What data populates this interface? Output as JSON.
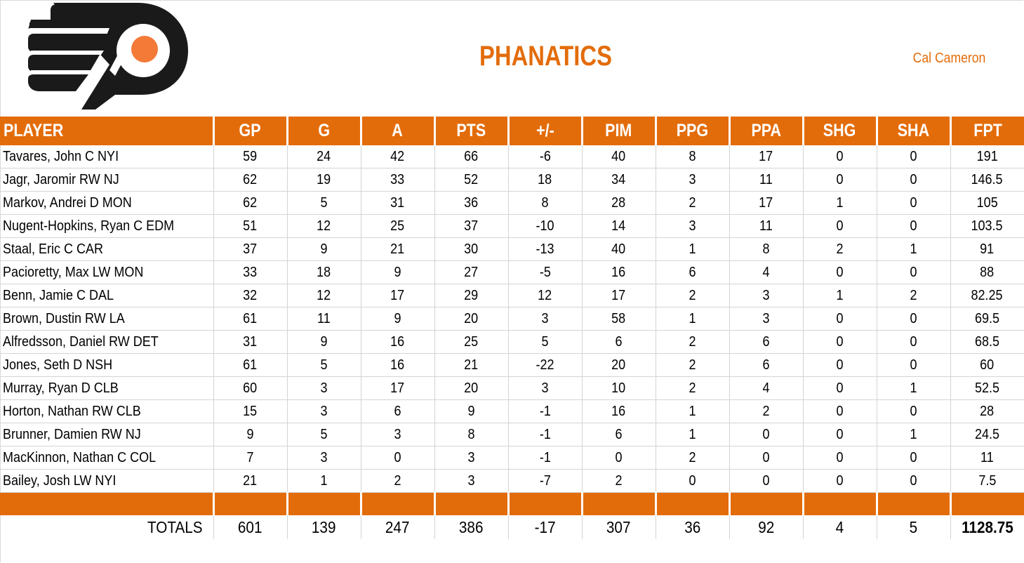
{
  "colors": {
    "accent": "#E36C0A",
    "logo_black": "#1a1a1a",
    "logo_orange": "#F47A38",
    "grid": "#D4D4D4"
  },
  "header": {
    "logo_icon": "flyers-logo",
    "logo_mark": "®",
    "team_name": "PHANATICS",
    "owner_name": "Cal Cameron"
  },
  "table": {
    "columns": [
      "PLAYER",
      "GP",
      "G",
      "A",
      "PTS",
      "+/-",
      "PIM",
      "PPG",
      "PPA",
      "SHG",
      "SHA",
      "FPT"
    ],
    "rows": [
      [
        "Tavares, John C NYI",
        "59",
        "24",
        "42",
        "66",
        "-6",
        "40",
        "8",
        "17",
        "0",
        "0",
        "191"
      ],
      [
        "Jagr, Jaromir RW NJ",
        "62",
        "19",
        "33",
        "52",
        "18",
        "34",
        "3",
        "11",
        "0",
        "0",
        "146.5"
      ],
      [
        "Markov, Andrei D MON",
        "62",
        "5",
        "31",
        "36",
        "8",
        "28",
        "2",
        "17",
        "1",
        "0",
        "105"
      ],
      [
        "Nugent-Hopkins, Ryan C EDM",
        "51",
        "12",
        "25",
        "37",
        "-10",
        "14",
        "3",
        "11",
        "0",
        "0",
        "103.5"
      ],
      [
        "Staal, Eric C CAR",
        "37",
        "9",
        "21",
        "30",
        "-13",
        "40",
        "1",
        "8",
        "2",
        "1",
        "91"
      ],
      [
        "Pacioretty, Max LW MON",
        "33",
        "18",
        "9",
        "27",
        "-5",
        "16",
        "6",
        "4",
        "0",
        "0",
        "88"
      ],
      [
        "Benn, Jamie C DAL",
        "32",
        "12",
        "17",
        "29",
        "12",
        "17",
        "2",
        "3",
        "1",
        "2",
        "82.25"
      ],
      [
        "Brown, Dustin RW LA",
        "61",
        "11",
        "9",
        "20",
        "3",
        "58",
        "1",
        "3",
        "0",
        "0",
        "69.5"
      ],
      [
        "Alfredsson, Daniel RW DET",
        "31",
        "9",
        "16",
        "25",
        "5",
        "6",
        "2",
        "6",
        "0",
        "0",
        "68.5"
      ],
      [
        "Jones, Seth D NSH",
        "61",
        "5",
        "16",
        "21",
        "-22",
        "20",
        "2",
        "6",
        "0",
        "0",
        "60"
      ],
      [
        "Murray, Ryan D CLB",
        "60",
        "3",
        "17",
        "20",
        "3",
        "10",
        "2",
        "4",
        "0",
        "1",
        "52.5"
      ],
      [
        "Horton, Nathan RW CLB",
        "15",
        "3",
        "6",
        "9",
        "-1",
        "16",
        "1",
        "2",
        "0",
        "0",
        "28"
      ],
      [
        "Brunner, Damien RW NJ",
        "9",
        "5",
        "3",
        "8",
        "-1",
        "6",
        "1",
        "0",
        "0",
        "1",
        "24.5"
      ],
      [
        "MacKinnon, Nathan C COL",
        "7",
        "3",
        "0",
        "3",
        "-1",
        "0",
        "2",
        "0",
        "0",
        "0",
        "11"
      ],
      [
        "Bailey, Josh LW NYI",
        "21",
        "1",
        "2",
        "3",
        "-7",
        "2",
        "0",
        "0",
        "0",
        "0",
        "7.5"
      ]
    ],
    "totals": [
      "TOTALS",
      "601",
      "139",
      "247",
      "386",
      "-17",
      "307",
      "36",
      "92",
      "4",
      "5",
      "1128.75"
    ]
  }
}
